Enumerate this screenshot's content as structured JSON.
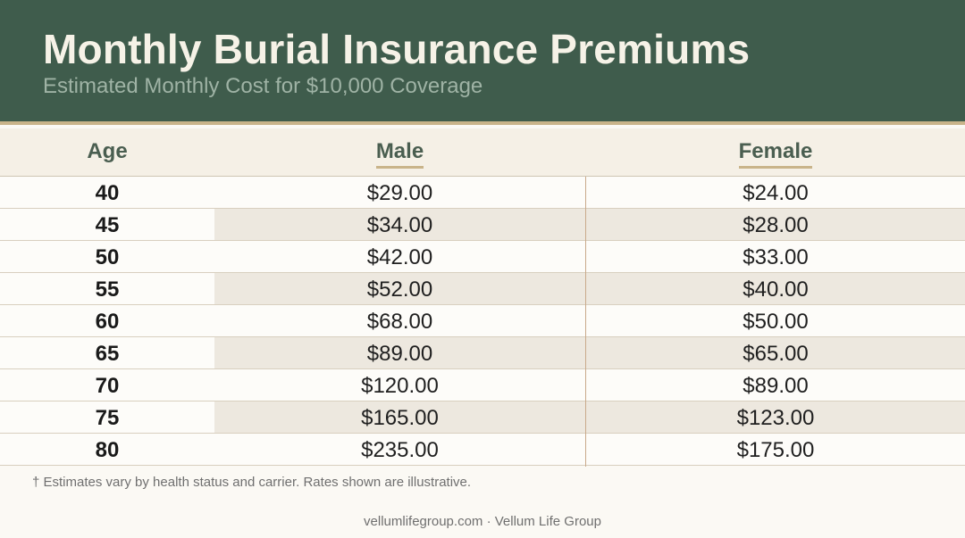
{
  "header": {
    "title": "Monthly Burial Insurance Premiums",
    "subtitle": "Estimated Monthly Cost for $10,000 Coverage"
  },
  "chart_data": {
    "type": "table",
    "title": "Monthly Burial Insurance Premiums",
    "subtitle": "Estimated Monthly Cost for $10,000 Coverage",
    "columns": [
      "Age",
      "Male",
      "Female"
    ],
    "rows": [
      {
        "age": "40",
        "male": "$29.00",
        "female": "$24.00"
      },
      {
        "age": "45",
        "male": "$34.00",
        "female": "$28.00"
      },
      {
        "age": "50",
        "male": "$42.00",
        "female": "$33.00"
      },
      {
        "age": "55",
        "male": "$52.00",
        "female": "$40.00"
      },
      {
        "age": "60",
        "male": "$68.00",
        "female": "$50.00"
      },
      {
        "age": "65",
        "male": "$89.00",
        "female": "$65.00"
      },
      {
        "age": "70",
        "male": "$120.00",
        "female": "$89.00"
      },
      {
        "age": "75",
        "male": "$165.00",
        "female": "$123.00"
      },
      {
        "age": "80",
        "male": "$235.00",
        "female": "$175.00"
      }
    ]
  },
  "footnote": "† Estimates vary by health status and carrier. Rates shown are illustrative.",
  "footer": "vellumlifegroup.com · Vellum Life Group",
  "colors": {
    "header_bg": "#3f5c4c",
    "accent": "#c9b48a",
    "alt_row": "#ede8df"
  }
}
